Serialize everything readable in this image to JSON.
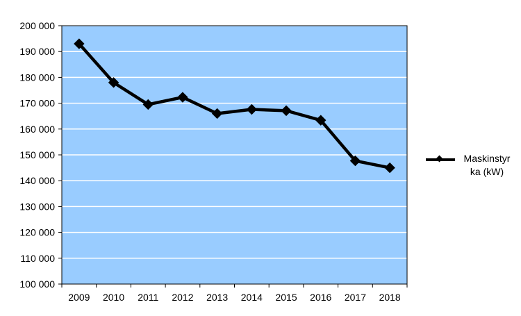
{
  "chart_data": {
    "type": "line",
    "categories": [
      "2009",
      "2010",
      "2011",
      "2012",
      "2013",
      "2014",
      "2015",
      "2016",
      "2017",
      "2018"
    ],
    "series": [
      {
        "name": "Maskinstyrka (kW)",
        "values": [
          193000,
          178000,
          169500,
          172300,
          166000,
          167600,
          167100,
          163400,
          147700,
          145000
        ],
        "color": "#000000",
        "marker": "diamond"
      }
    ],
    "y_ticks": [
      "100 000",
      "110 000",
      "120 000",
      "130 000",
      "140 000",
      "150 000",
      "160 000",
      "170 000",
      "180 000",
      "190 000",
      "200 000"
    ],
    "ylim": [
      100000,
      200000
    ],
    "y_step": 10000,
    "grid": true,
    "plot_background": "#99ccff",
    "gridline_color": "#ffffff",
    "legend_position": "right",
    "legend_lines": [
      "Maskinstyr",
      "ka (kW)"
    ]
  }
}
